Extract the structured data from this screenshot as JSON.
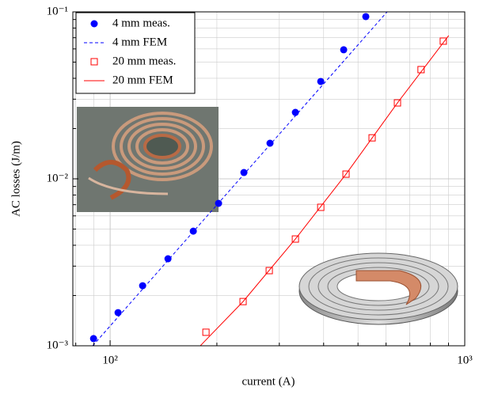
{
  "chart_data": {
    "type": "line",
    "xlabel": "current (A)",
    "ylabel": "AC losses (J/m)",
    "xscale": "log",
    "yscale": "log",
    "grid": true,
    "legend": "upper left",
    "xlim": [
      78.5,
      1000
    ],
    "ylim": [
      0.001,
      0.1
    ],
    "xticks": [
      {
        "value": 100,
        "label": "10²"
      },
      {
        "value": 1000,
        "label": "10³"
      }
    ],
    "xminor": [
      80,
      90,
      200,
      300,
      400,
      500,
      600,
      700,
      800,
      900
    ],
    "yticks": [
      {
        "value": 0.001,
        "label": "10⁻³"
      },
      {
        "value": 0.01,
        "label": "10⁻²"
      },
      {
        "value": 0.1,
        "label": "10⁻¹"
      }
    ],
    "yminor": [
      0.002,
      0.003,
      0.004,
      0.005,
      0.006,
      0.007,
      0.008,
      0.009,
      0.02,
      0.03,
      0.04,
      0.05,
      0.06,
      0.07,
      0.08,
      0.09
    ],
    "series": [
      {
        "name": "4 mm meas.",
        "color": "#0000ff",
        "mode": "circle",
        "x": [
          89.8,
          105.3,
          123.5,
          145.6,
          171.6,
          202.2,
          238.4,
          282.4,
          333,
          392.6,
          455.6,
          526
        ],
        "values": [
          0.001104,
          0.00158,
          0.00229,
          0.00332,
          0.00486,
          0.00713,
          0.01091,
          0.01634,
          0.025,
          0.0383,
          0.0593,
          0.0937
        ]
      },
      {
        "name": "4 mm FEM",
        "color": "#0000ff",
        "mode": "dashed",
        "x": [
          89.3,
          604
        ],
        "values": [
          0.001,
          0.1
        ]
      },
      {
        "name": "20 mm meas.",
        "color": "#ff0000",
        "mode": "square",
        "x": [
          186.3,
          237.1,
          281,
          333,
          392.6,
          462.6,
          548,
          646,
          753,
          870
        ],
        "values": [
          0.001205,
          0.00184,
          0.00282,
          0.00436,
          0.00675,
          0.01067,
          0.0176,
          0.0285,
          0.0451,
          0.0668
        ]
      },
      {
        "name": "20 mm FEM",
        "color": "#ff0000",
        "mode": "solid",
        "x": [
          179.6,
          237.1,
          333,
          462.6,
          646,
          901
        ],
        "values": [
          0.001,
          0.00184,
          0.00436,
          0.01067,
          0.0285,
          0.0721
        ]
      }
    ]
  }
}
